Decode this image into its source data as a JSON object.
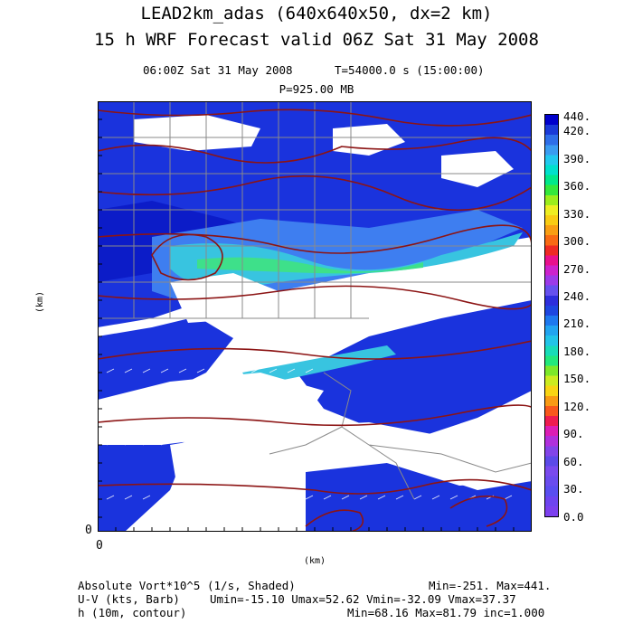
{
  "title": {
    "line1": "LEAD2km_adas (640x640x50, dx=2 km)",
    "line2": "15 h WRF Forecast valid 06Z Sat 31 May 2008"
  },
  "subtitle": {
    "valid_time": "06:00Z Sat 31 May 2008",
    "time_info": "T=54000.0 s (15:00:00)",
    "pressure": "P=925.00 MB"
  },
  "axes": {
    "y_label": "(km)",
    "x_label": "(km)",
    "y_origin": "0",
    "x_origin": "0"
  },
  "colorbar": {
    "labels": [
      "440.",
      "420.",
      "390.",
      "360.",
      "330.",
      "300.",
      "270.",
      "240.",
      "210.",
      "180.",
      "150.",
      "120.",
      "90.",
      "60.",
      "30.",
      "0.0"
    ],
    "colors": [
      "#0000cc",
      "#1a3ad8",
      "#2e6ee8",
      "#3a9cf0",
      "#22c8ee",
      "#00e0cc",
      "#00e88a",
      "#34e83c",
      "#9ced1c",
      "#eeee22",
      "#f8cc14",
      "#f89e14",
      "#f86a14",
      "#ee2a24",
      "#e8108c",
      "#cc22cc",
      "#9c3ae8",
      "#6650ee",
      "#2e2edc",
      "#1e46e0",
      "#1e78ee",
      "#22a4f0",
      "#22c4e8",
      "#18dcb8",
      "#22e87c",
      "#7ce82a",
      "#cceb20",
      "#f8d414",
      "#f89a14",
      "#f8581c",
      "#ee1c50",
      "#dc1eb4",
      "#b030dc",
      "#8244e8",
      "#5c4ae8",
      "#7a4aee",
      "#6a4cee",
      "#5a4ef0",
      "#6e44f0",
      "#7c40ee"
    ]
  },
  "map": {
    "colors": {
      "shade_main": "#1a33dd",
      "shade_deep": "#0c1cc8",
      "shade_light": "#3e7ef0",
      "shade_cyan": "#38c4e0",
      "shade_green": "#3ee08a",
      "contour": "#8c1414",
      "county": "#8a8a8a",
      "barb": "#ffffff"
    }
  },
  "footer": {
    "line1_left": "Absolute Vort*10^5 (1/s, Shaded)",
    "line1_right": "Min=-251. Max=441.",
    "line2_left": "U-V (kts, Barb)",
    "line2_right": "Umin=-15.10 Umax=52.62 Vmin=-32.09 Vmax=37.37",
    "line3_left": "h (10m, contour)",
    "line3_right": "Min=68.16 Max=81.79 inc=1.000"
  }
}
